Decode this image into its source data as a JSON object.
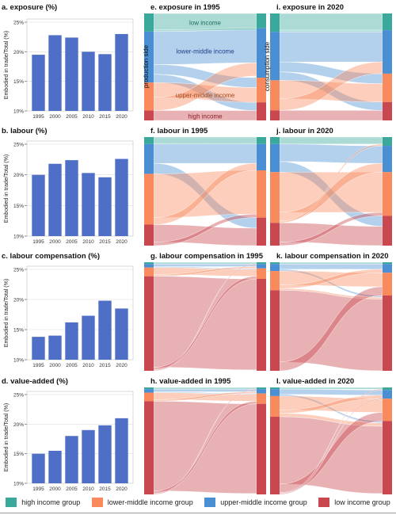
{
  "colors": {
    "high": "#3aa99b",
    "lower_middle": "#f98a5e",
    "upper_middle": "#4a8ed3",
    "low": "#c9474f",
    "bar": "#4f6fc6",
    "axis": "#777777",
    "grid": "#dddddd"
  },
  "legend": {
    "items": [
      {
        "key": "high",
        "label": "high income group"
      },
      {
        "key": "lower_middle",
        "label": "lower-middle income group"
      },
      {
        "key": "upper_middle",
        "label": "upper-middle income group"
      },
      {
        "key": "low",
        "label": "low income group"
      }
    ]
  },
  "sankey_side_labels": {
    "left": "production side",
    "right": "consumption side"
  },
  "sankey_inline_labels": {
    "high": "low income",
    "upper_middle": "lower-middle income",
    "lower_middle": "upper-middle income",
    "low": "high income"
  },
  "chart_data": [
    {
      "id": "a",
      "type": "bar",
      "title": "a. exposure (%)",
      "ylabel": "Embodied in trade/Total (%)",
      "categories": [
        "1995",
        "2000",
        "2005",
        "2010",
        "2015",
        "2020"
      ],
      "values": [
        19.5,
        22.8,
        22.4,
        20.0,
        19.6,
        23.0
      ],
      "ylim": [
        10,
        25
      ],
      "yticks": [
        "10%",
        "15%",
        "20%",
        "25%"
      ]
    },
    {
      "id": "b",
      "type": "bar",
      "title": "b. labour (%)",
      "ylabel": "Embodied in trade/Total (%)",
      "categories": [
        "1995",
        "2000",
        "2005",
        "2010",
        "2015",
        "2020"
      ],
      "values": [
        20.0,
        21.8,
        22.4,
        20.3,
        19.6,
        22.6
      ],
      "ylim": [
        10,
        25
      ],
      "yticks": [
        "10%",
        "15%",
        "20%",
        "25%"
      ]
    },
    {
      "id": "c",
      "type": "bar",
      "title": "c. labour compensation (%)",
      "ylabel": "Embodied in trade/Total (%)",
      "categories": [
        "1995",
        "2000",
        "2005",
        "2010",
        "2015",
        "2020"
      ],
      "values": [
        13.8,
        14.0,
        16.2,
        17.3,
        19.8,
        18.5
      ],
      "ylim": [
        10,
        25
      ],
      "yticks": [
        "10%",
        "15%",
        "20%",
        "25%"
      ]
    },
    {
      "id": "d",
      "type": "bar",
      "title": "d. value-added (%)",
      "ylabel": "Embodied in trade/Total (%)",
      "categories": [
        "1995",
        "2000",
        "2005",
        "2010",
        "2015",
        "2020"
      ],
      "values": [
        15.0,
        15.5,
        18.0,
        19.0,
        19.8,
        21.0
      ],
      "ylim": [
        10,
        25
      ],
      "yticks": [
        "10%",
        "15%",
        "20%",
        "25%"
      ]
    },
    {
      "id": "e",
      "type": "sankey",
      "title": "e. exposure in 1995",
      "left": {
        "high": 22,
        "upper_middle": 62,
        "lower_middle": 34,
        "low": 12
      },
      "right": {
        "high": 18,
        "upper_middle": 60,
        "lower_middle": 30,
        "low": 22
      },
      "flows": [
        [
          "high",
          "high",
          20
        ],
        [
          "high",
          "upper_middle",
          2
        ],
        [
          "upper_middle",
          "upper_middle",
          40
        ],
        [
          "upper_middle",
          "lower_middle",
          12
        ],
        [
          "upper_middle",
          "low",
          10
        ],
        [
          "lower_middle",
          "lower_middle",
          18
        ],
        [
          "lower_middle",
          "upper_middle",
          16
        ],
        [
          "low",
          "low",
          12
        ]
      ]
    },
    {
      "id": "i",
      "type": "sankey",
      "title": "i. exposure in 2020",
      "left": {
        "high": 22,
        "upper_middle": 58,
        "lower_middle": 36,
        "low": 12
      },
      "right": {
        "high": 20,
        "upper_middle": 52,
        "lower_middle": 34,
        "low": 22
      },
      "flows": [
        [
          "high",
          "high",
          20
        ],
        [
          "high",
          "upper_middle",
          2
        ],
        [
          "upper_middle",
          "upper_middle",
          36
        ],
        [
          "upper_middle",
          "lower_middle",
          12
        ],
        [
          "upper_middle",
          "low",
          10
        ],
        [
          "lower_middle",
          "lower_middle",
          22
        ],
        [
          "lower_middle",
          "upper_middle",
          14
        ],
        [
          "low",
          "low",
          12
        ]
      ]
    },
    {
      "id": "f",
      "type": "sankey",
      "title": "f. labour in 1995",
      "left": {
        "high": 8,
        "upper_middle": 34,
        "lower_middle": 58,
        "low": 24
      },
      "right": {
        "high": 8,
        "upper_middle": 30,
        "lower_middle": 54,
        "low": 32
      },
      "flows": [
        [
          "high",
          "high",
          8
        ],
        [
          "upper_middle",
          "upper_middle",
          22
        ],
        [
          "upper_middle",
          "low",
          12
        ],
        [
          "lower_middle",
          "lower_middle",
          50
        ],
        [
          "lower_middle",
          "upper_middle",
          8
        ],
        [
          "low",
          "low",
          20
        ],
        [
          "low",
          "lower_middle",
          4
        ]
      ]
    },
    {
      "id": "j",
      "type": "sankey",
      "title": "j. labour in 2020",
      "left": {
        "high": 8,
        "upper_middle": 32,
        "lower_middle": 58,
        "low": 26
      },
      "right": {
        "high": 10,
        "upper_middle": 30,
        "lower_middle": 50,
        "low": 34
      },
      "flows": [
        [
          "high",
          "high",
          8
        ],
        [
          "upper_middle",
          "upper_middle",
          20
        ],
        [
          "upper_middle",
          "low",
          12
        ],
        [
          "lower_middle",
          "lower_middle",
          46
        ],
        [
          "lower_middle",
          "upper_middle",
          10
        ],
        [
          "lower_middle",
          "high",
          2
        ],
        [
          "low",
          "low",
          22
        ],
        [
          "low",
          "lower_middle",
          4
        ]
      ]
    },
    {
      "id": "g",
      "type": "sankey",
      "title": "g. labour compensation in 1995",
      "left": {
        "high": 2,
        "upper_middle": 4,
        "lower_middle": 10,
        "low": 108
      },
      "right": {
        "high": 2,
        "upper_middle": 5,
        "lower_middle": 12,
        "low": 105
      },
      "flows": [
        [
          "high",
          "high",
          2
        ],
        [
          "upper_middle",
          "upper_middle",
          3
        ],
        [
          "upper_middle",
          "lower_middle",
          1
        ],
        [
          "lower_middle",
          "lower_middle",
          8
        ],
        [
          "lower_middle",
          "upper_middle",
          2
        ],
        [
          "low",
          "low",
          104
        ],
        [
          "low",
          "lower_middle",
          3
        ],
        [
          "low",
          "high",
          1
        ]
      ]
    },
    {
      "id": "k",
      "type": "sankey",
      "title": "k. labour compensation in 2020",
      "left": {
        "high": 2,
        "upper_middle": 8,
        "lower_middle": 22,
        "low": 92
      },
      "right": {
        "high": 2,
        "upper_middle": 10,
        "lower_middle": 26,
        "low": 86
      },
      "flows": [
        [
          "high",
          "high",
          2
        ],
        [
          "upper_middle",
          "upper_middle",
          6
        ],
        [
          "upper_middle",
          "low",
          2
        ],
        [
          "lower_middle",
          "lower_middle",
          16
        ],
        [
          "lower_middle",
          "upper_middle",
          4
        ],
        [
          "lower_middle",
          "low",
          2
        ],
        [
          "low",
          "low",
          82
        ],
        [
          "low",
          "lower_middle",
          10
        ]
      ]
    },
    {
      "id": "h",
      "type": "sankey",
      "title": "h. value-added in 1995",
      "left": {
        "high": 2,
        "upper_middle": 4,
        "lower_middle": 10,
        "low": 108
      },
      "right": {
        "high": 2,
        "upper_middle": 5,
        "lower_middle": 12,
        "low": 105
      },
      "flows": [
        [
          "high",
          "high",
          2
        ],
        [
          "upper_middle",
          "upper_middle",
          3
        ],
        [
          "upper_middle",
          "lower_middle",
          1
        ],
        [
          "lower_middle",
          "lower_middle",
          8
        ],
        [
          "lower_middle",
          "upper_middle",
          2
        ],
        [
          "low",
          "low",
          104
        ],
        [
          "low",
          "lower_middle",
          3
        ],
        [
          "low",
          "high",
          1
        ]
      ]
    },
    {
      "id": "l",
      "type": "sankey",
      "title": "l. value-added in 2020",
      "left": {
        "high": 2,
        "upper_middle": 8,
        "lower_middle": 24,
        "low": 90
      },
      "right": {
        "high": 3,
        "upper_middle": 10,
        "lower_middle": 26,
        "low": 85
      },
      "flows": [
        [
          "high",
          "high",
          2
        ],
        [
          "upper_middle",
          "upper_middle",
          6
        ],
        [
          "upper_middle",
          "low",
          2
        ],
        [
          "lower_middle",
          "lower_middle",
          16
        ],
        [
          "lower_middle",
          "upper_middle",
          4
        ],
        [
          "lower_middle",
          "low",
          4
        ],
        [
          "low",
          "low",
          78
        ],
        [
          "low",
          "lower_middle",
          10
        ],
        [
          "low",
          "high",
          1
        ],
        [
          "low",
          "upper_middle",
          1
        ]
      ]
    }
  ]
}
